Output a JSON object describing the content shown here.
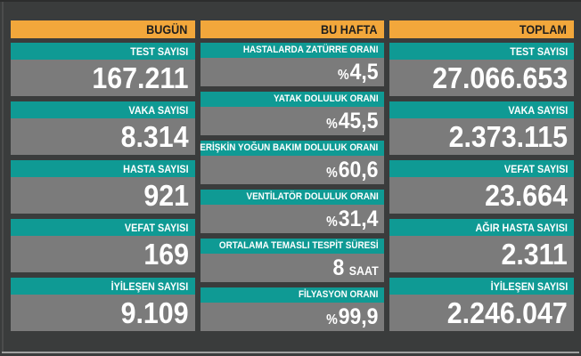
{
  "theme": {
    "background": "#3a3c3c",
    "accent_orange": "#f2a73b",
    "accent_teal": "#0f9a94",
    "card_gray": "#7b7b7b",
    "header_text": "#1e1e1e",
    "label_text": "#ffffff",
    "value_text": "#ffffff"
  },
  "chart_data": {
    "type": "table",
    "layout": "three-column statistics board",
    "columns": [
      {
        "header": "BUGÜN",
        "cards": [
          {
            "label": "TEST SAYISI",
            "value": "167.211"
          },
          {
            "label": "VAKA SAYISI",
            "value": "8.314"
          },
          {
            "label": "HASTA SAYISI",
            "value": "921"
          },
          {
            "label": "VEFAT SAYISI",
            "value": "169"
          },
          {
            "label": "İYİLEŞEN SAYISI",
            "value": "9.109"
          }
        ]
      },
      {
        "header": "BU HAFTA",
        "cards": [
          {
            "label": "HASTALARDA ZATÜRRE ORANI",
            "prefix": "%",
            "value": "4,5"
          },
          {
            "label": "YATAK DOLULUK ORANI",
            "prefix": "%",
            "value": "45,5"
          },
          {
            "label": "ERİŞKİN YOĞUN BAKIM DOLULUK ORANI",
            "prefix": "%",
            "value": "60,6"
          },
          {
            "label": "VENTİLATÖR DOLULUK ORANI",
            "prefix": "%",
            "value": "31,4"
          },
          {
            "label": "ORTALAMA TEMASLI TESPİT SÜRESİ",
            "value": "8",
            "suffix": "SAAT"
          },
          {
            "label": "FİLYASYON ORANI",
            "prefix": "%",
            "value": "99,9"
          }
        ]
      },
      {
        "header": "TOPLAM",
        "cards": [
          {
            "label": "TEST SAYISI",
            "value": "27.066.653"
          },
          {
            "label": "VAKA SAYISI",
            "value": "2.373.115"
          },
          {
            "label": "VEFAT SAYISI",
            "value": "23.664"
          },
          {
            "label": "AĞIR HASTA SAYISI",
            "value": "2.311"
          },
          {
            "label": "İYİLEŞEN SAYISI",
            "value": "2.246.047"
          }
        ]
      }
    ]
  }
}
